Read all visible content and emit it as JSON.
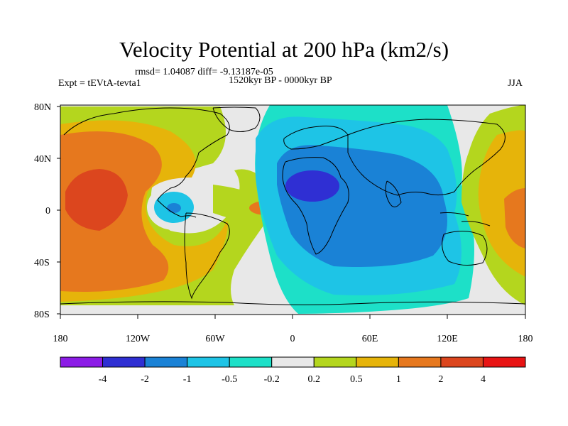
{
  "title": "Velocity Potential at 200 hPa (km2/s)",
  "subtitle_rmsd": "rmsd= 1.04087 diff= -9.13187e-05",
  "subtitle_left": "Expt = tEVtA-tevta1",
  "subtitle_center": "1520kyr BP - 0000kyr BP",
  "subtitle_right": "JJA",
  "axes": {
    "lat_ticks": [
      "80N",
      "40N",
      "0",
      "40S",
      "80S"
    ],
    "lon_ticks": [
      "180",
      "120W",
      "60W",
      "0",
      "60E",
      "120E",
      "180"
    ]
  },
  "colorbar": {
    "labels": [
      "-4",
      "-2",
      "-1",
      "-0.5",
      "-0.2",
      "0.2",
      "0.5",
      "1",
      "2",
      "4"
    ],
    "colors": [
      "#8c1ce6",
      "#2f2fd3",
      "#1a82d6",
      "#1ec4e6",
      "#1de0c8",
      "#e8e8e8",
      "#b4d61e",
      "#e6b40a",
      "#e6781e",
      "#dc461e",
      "#e81414"
    ]
  },
  "palette": {
    "land_outline": "#000000",
    "neutral": "#e8e8e8"
  }
}
